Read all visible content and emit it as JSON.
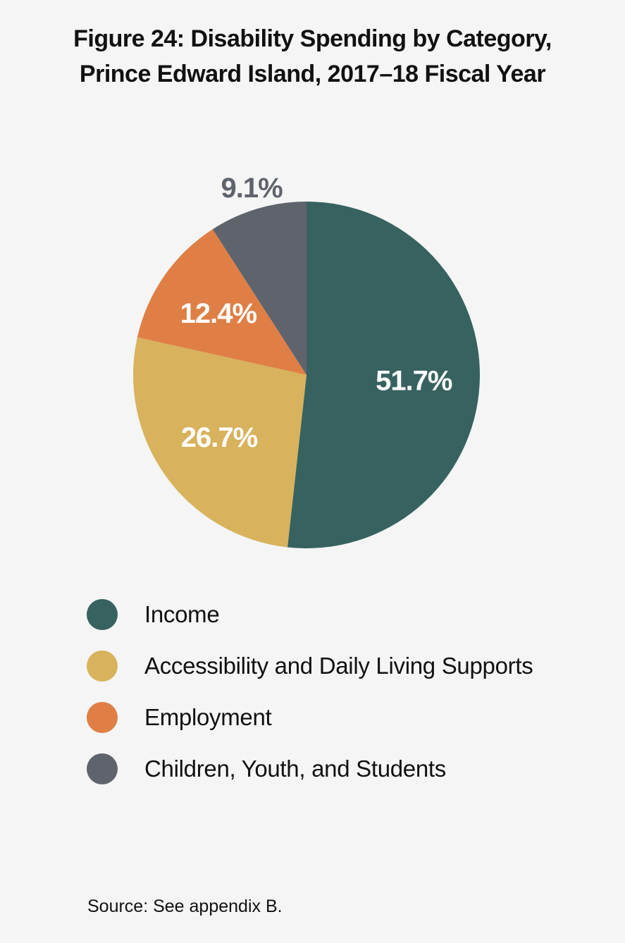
{
  "title_line1": "Figure 24: Disability Spending by Category,",
  "title_line2": "Prince Edward Island, 2017–18 Fiscal Year",
  "source": "Source: See appendix B.",
  "chart_data": {
    "type": "pie",
    "categories": [
      "Income",
      "Accessibility and Daily Living Supports",
      "Employment",
      "Children, Youth, and Students"
    ],
    "values": [
      51.7,
      26.7,
      12.4,
      9.1
    ],
    "data_labels": [
      "51.7%",
      "26.7%",
      "12.4%",
      "9.1%"
    ],
    "colors": [
      "#376260",
      "#d8b25c",
      "#df7f46",
      "#5f646c"
    ],
    "label_colors": [
      "#ffffff",
      "#ffffff",
      "#ffffff",
      "#5f646c"
    ],
    "start": "12 o'clock",
    "direction": "clockwise",
    "legend_position": "bottom"
  }
}
